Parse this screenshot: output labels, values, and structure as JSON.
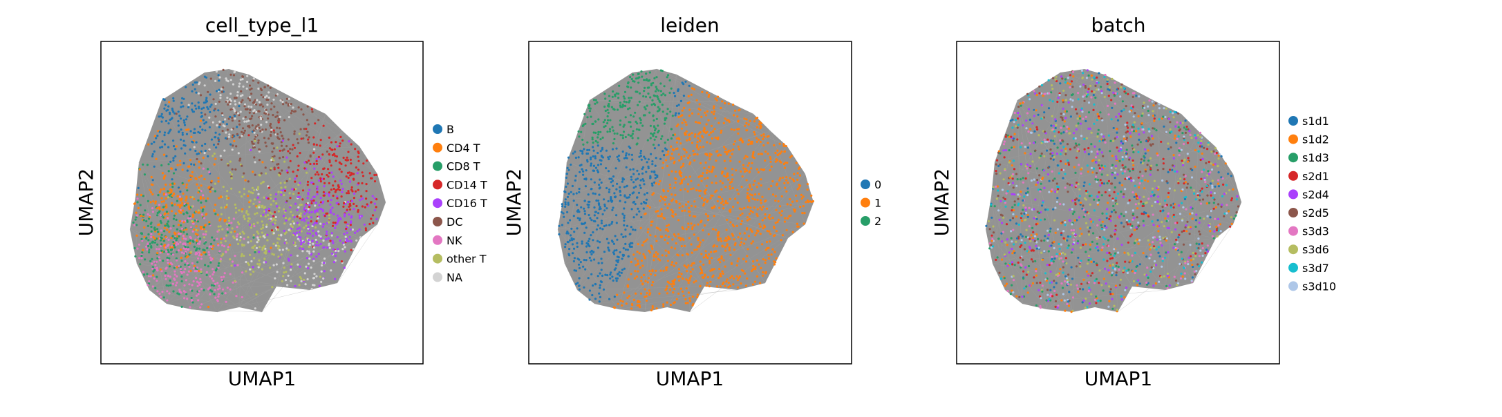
{
  "chart_data": [
    {
      "type": "scatter",
      "title": "cell_type_l1",
      "xlabel": "UMAP1",
      "ylabel": "UMAP2",
      "grid": false,
      "legend_position": "right",
      "series": [
        {
          "name": "B",
          "color": "#1f77b4"
        },
        {
          "name": "CD4 T",
          "color": "#ff7f0e"
        },
        {
          "name": "CD8 T",
          "color": "#279e68"
        },
        {
          "name": "CD14 T",
          "color": "#d62728"
        },
        {
          "name": "CD16 T",
          "color": "#aa40fc"
        },
        {
          "name": "DC",
          "color": "#8c564b"
        },
        {
          "name": "NK",
          "color": "#e377c2"
        },
        {
          "name": "other T",
          "color": "#b5bd61"
        },
        {
          "name": "NA",
          "color": "#d3d3d3"
        }
      ]
    },
    {
      "type": "scatter",
      "title": "leiden",
      "xlabel": "UMAP1",
      "ylabel": "UMAP2",
      "grid": false,
      "legend_position": "right",
      "series": [
        {
          "name": "0",
          "color": "#1f77b4"
        },
        {
          "name": "1",
          "color": "#ff7f0e"
        },
        {
          "name": "2",
          "color": "#279e68"
        }
      ]
    },
    {
      "type": "scatter",
      "title": "batch",
      "xlabel": "UMAP1",
      "ylabel": "UMAP2",
      "grid": false,
      "legend_position": "right",
      "series": [
        {
          "name": "s1d1",
          "color": "#1f77b4"
        },
        {
          "name": "s1d2",
          "color": "#ff7f0e"
        },
        {
          "name": "s1d3",
          "color": "#279e68"
        },
        {
          "name": "s2d1",
          "color": "#d62728"
        },
        {
          "name": "s2d4",
          "color": "#aa40fc"
        },
        {
          "name": "s2d5",
          "color": "#8c564b"
        },
        {
          "name": "s3d3",
          "color": "#e377c2"
        },
        {
          "name": "s3d6",
          "color": "#b5bd61"
        },
        {
          "name": "s3d7",
          "color": "#17becf"
        },
        {
          "name": "s3d10",
          "color": "#aec7e8"
        }
      ]
    }
  ],
  "colors": {
    "edges": "#808080",
    "axes": "#000000"
  }
}
